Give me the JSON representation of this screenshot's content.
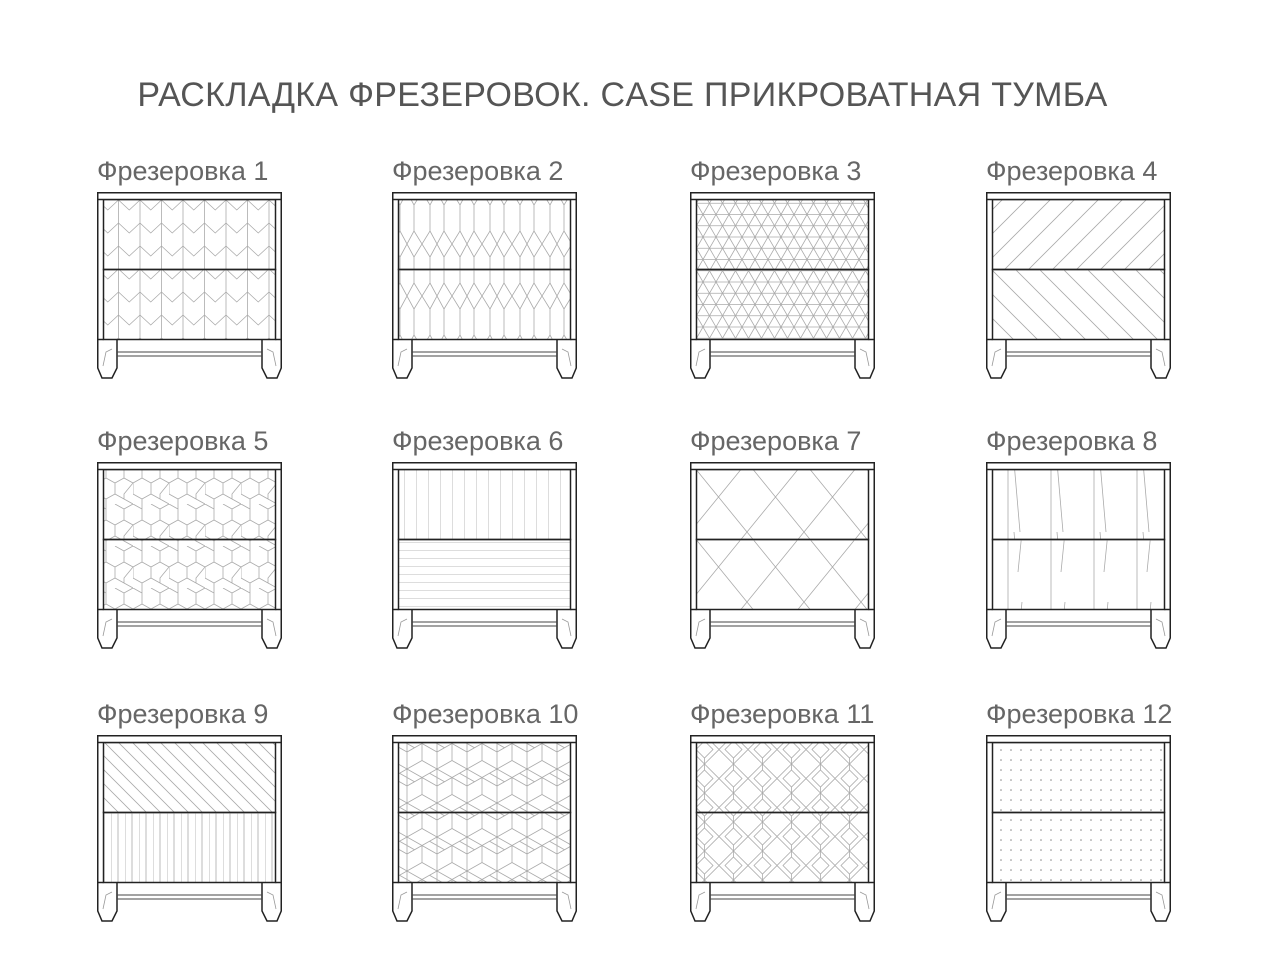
{
  "title": "РАСКЛАДКА ФРЕЗЕРОВОК. CASE ПРИКРОВАТНАЯ ТУМБА",
  "items": [
    {
      "label": "Фрезеровка 1",
      "pattern": "chevron"
    },
    {
      "label": "Фрезеровка 2",
      "pattern": "long-hexagon"
    },
    {
      "label": "Фрезеровка 3",
      "pattern": "star-triangles"
    },
    {
      "label": "Фрезеровка 4",
      "pattern": "diagonal-opposed"
    },
    {
      "label": "Фрезеровка 5",
      "pattern": "hexagon"
    },
    {
      "label": "Фрезеровка 6",
      "pattern": "vertical-horizontal-lines"
    },
    {
      "label": "Фрезеровка 7",
      "pattern": "diamond"
    },
    {
      "label": "Фрезеровка 8",
      "pattern": "sparse-lines"
    },
    {
      "label": "Фрезеровка 9",
      "pattern": "diagonal-mix"
    },
    {
      "label": "Фрезеровка 10",
      "pattern": "cubes"
    },
    {
      "label": "Фрезеровка 11",
      "pattern": "diamond-herringbone"
    },
    {
      "label": "Фрезеровка 12",
      "pattern": "dots"
    }
  ],
  "colors": {
    "outline": "#222222",
    "pattern": "#aaaaaa",
    "text": "#555555"
  }
}
